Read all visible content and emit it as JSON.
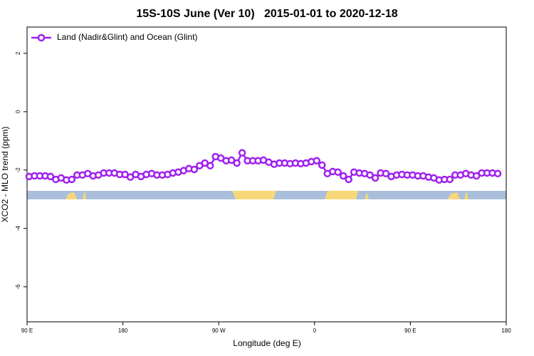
{
  "chart_data": {
    "type": "line",
    "title": "15S-10S June (Ver 10)   2015-01-01 to 2020-12-18",
    "x_label": "Longitude (deg E)",
    "y_label": "XCO2 - MLO trend (ppm)",
    "xlim": [
      90,
      540
    ],
    "ylim": [
      -7.2,
      2.9
    ],
    "xticks": [
      {
        "value": 90,
        "label": "90 E"
      },
      180,
      {
        "value": 270,
        "label": "90 W"
      },
      {
        "value": 360,
        "label": "0"
      },
      {
        "value": 450,
        "label": "90 E"
      },
      {
        "value": 540,
        "label": "180"
      }
    ],
    "yticks": [
      2,
      0,
      -2,
      -4,
      -6
    ],
    "legend": "top-left",
    "x": [
      92,
      97,
      102,
      107,
      112,
      117,
      122,
      127,
      132,
      137,
      142,
      147,
      152,
      157,
      162,
      167,
      172,
      177,
      182,
      187,
      192,
      197,
      202,
      207,
      212,
      217,
      222,
      227,
      232,
      237,
      242,
      247,
      252,
      257,
      262,
      267,
      272,
      277,
      282,
      287,
      292,
      297,
      302,
      307,
      312,
      317,
      322,
      327,
      332,
      337,
      342,
      347,
      352,
      357,
      362,
      367,
      372,
      377,
      382,
      387,
      392,
      397,
      402,
      407,
      412,
      417,
      422,
      427,
      432,
      437,
      442,
      447,
      452,
      457,
      462,
      467,
      472,
      477,
      482,
      487,
      492,
      497,
      502,
      507,
      512,
      517,
      522,
      527,
      532
    ],
    "series": [
      {
        "name": "Land (Nadir&Glint) and Ocean (Glint)",
        "color": "#a020f0",
        "values": [
          -2.22,
          -2.2,
          -2.2,
          -2.2,
          -2.22,
          -2.32,
          -2.27,
          -2.34,
          -2.32,
          -2.17,
          -2.17,
          -2.12,
          -2.2,
          -2.17,
          -2.1,
          -2.1,
          -2.1,
          -2.15,
          -2.15,
          -2.24,
          -2.15,
          -2.22,
          -2.15,
          -2.12,
          -2.17,
          -2.17,
          -2.15,
          -2.1,
          -2.07,
          -2.02,
          -1.95,
          -1.98,
          -1.85,
          -1.76,
          -1.85,
          -1.54,
          -1.59,
          -1.68,
          -1.66,
          -1.76,
          -1.41,
          -1.68,
          -1.68,
          -1.68,
          -1.66,
          -1.73,
          -1.8,
          -1.76,
          -1.76,
          -1.78,
          -1.76,
          -1.78,
          -1.76,
          -1.71,
          -1.68,
          -1.83,
          -2.12,
          -2.05,
          -2.07,
          -2.2,
          -2.32,
          -2.07,
          -2.1,
          -2.12,
          -2.17,
          -2.27,
          -2.1,
          -2.12,
          -2.22,
          -2.17,
          -2.15,
          -2.17,
          -2.17,
          -2.2,
          -2.2,
          -2.24,
          -2.27,
          -2.34,
          -2.32,
          -2.32,
          -2.17,
          -2.17,
          -2.12,
          -2.17,
          -2.2,
          -2.1,
          -2.1,
          -2.1,
          -2.12
        ]
      }
    ]
  }
}
